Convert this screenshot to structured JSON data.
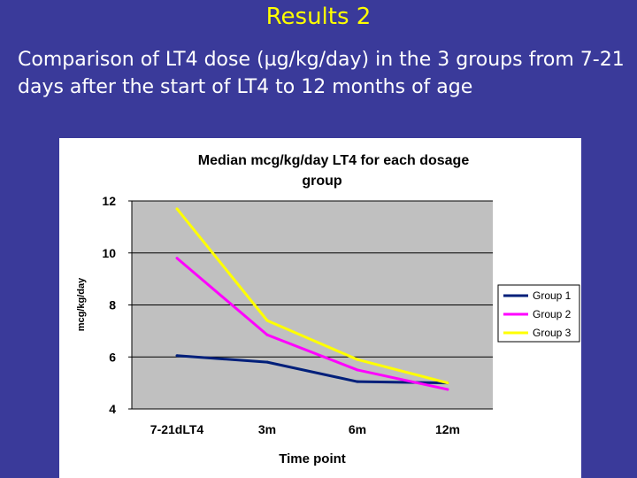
{
  "slide": {
    "title": "Results 2",
    "subtitle": "Comparison of LT4 dose (µg/kg/day) in the 3 groups from 7-21 days after the start of LT4 to 12 months of age"
  },
  "colors": {
    "background": "#3a3a9a",
    "title": "#ffff00",
    "plot_area": "#c0c0c0"
  },
  "chart_data": {
    "type": "line",
    "title": "Median mcg/kg/day LT4 for each dosage group",
    "title_lines": [
      "Median mcg/kg/day LT4 for each dosage",
      "group"
    ],
    "xlabel": "Time point",
    "ylabel": "mcg/kg/day",
    "categories": [
      "7-21dLT4",
      "3m",
      "6m",
      "12m"
    ],
    "ylim": [
      4,
      12
    ],
    "yticks": [
      4,
      6,
      8,
      10,
      12
    ],
    "grid": true,
    "legend_position": "right",
    "series": [
      {
        "name": "Group 1",
        "color": "#001f7a",
        "values": [
          6.05,
          5.8,
          5.05,
          5.0
        ]
      },
      {
        "name": "Group 2",
        "color": "#ff00ff",
        "values": [
          9.8,
          6.85,
          5.5,
          4.75
        ]
      },
      {
        "name": "Group 3",
        "color": "#ffff00",
        "values": [
          11.7,
          7.4,
          5.9,
          5.0
        ]
      }
    ]
  }
}
